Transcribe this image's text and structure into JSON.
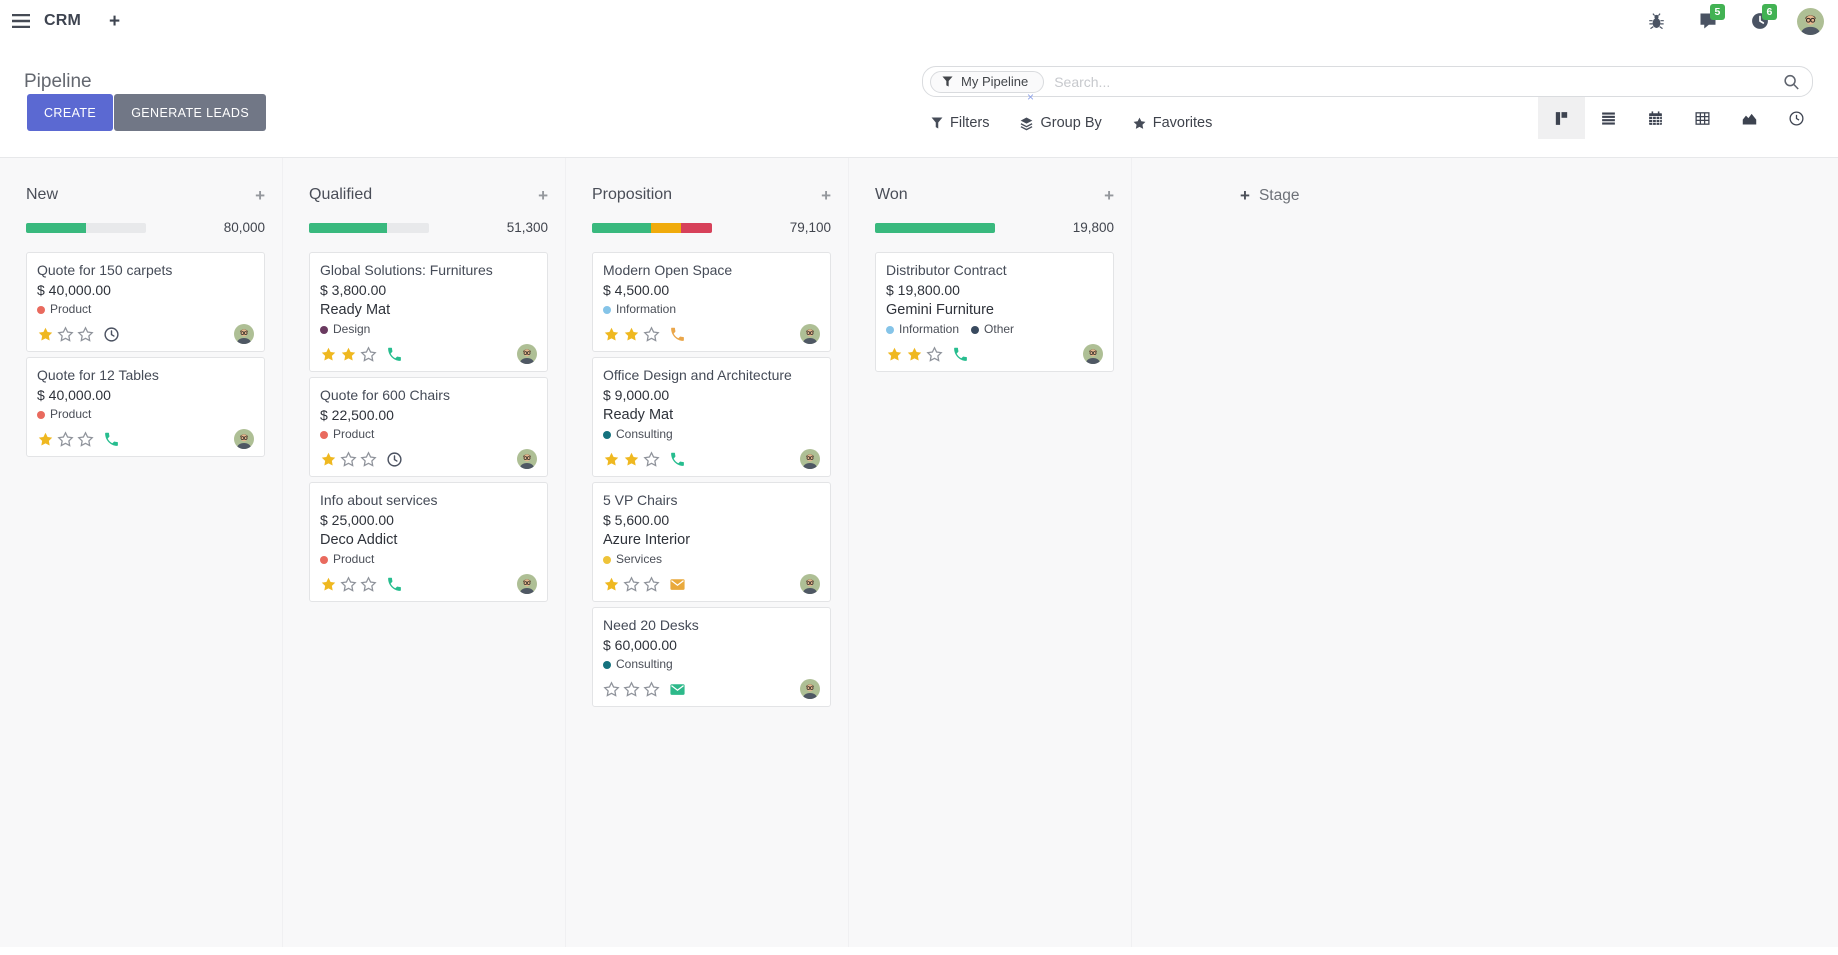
{
  "navbar": {
    "brand": "CRM",
    "add_label": "+",
    "badges": {
      "messages": "5",
      "activities": "6"
    },
    "icons": [
      "menu-icon",
      "plus-icon",
      "bug-icon",
      "messages-icon",
      "activities-clock-icon",
      "avatar"
    ]
  },
  "control_panel": {
    "title": "Pipeline",
    "create_label": "CREATE",
    "generate_leads_label": "GENERATE LEADS",
    "search": {
      "facet_label": "My Pipeline",
      "facet_remove": "×",
      "placeholder": "Search...",
      "icons": [
        "funnel-icon",
        "search-icon"
      ]
    },
    "filters_label": "Filters",
    "group_by_label": "Group By",
    "favorites_label": "Favorites",
    "view_switcher": [
      "kanban",
      "list",
      "calendar",
      "pivot",
      "graph",
      "activity"
    ],
    "active_view": "kanban"
  },
  "colors": {
    "create_button": "#5b69d2",
    "generate_button": "#717786",
    "badge_green": "#42b253",
    "progress_green": "#39b97e",
    "progress_yellow": "#f0ab0c",
    "progress_red": "#d7415a",
    "star_filled": "#efb820"
  },
  "kanban": {
    "add_card_label": "+",
    "add_stage_plus": "+",
    "add_stage_label": "Stage",
    "columns": [
      {
        "name": "New",
        "total": "80,000",
        "progress": [
          {
            "color": "#39b97e",
            "pct": 50
          }
        ],
        "cards": [
          {
            "title": "Quote for 150 carpets",
            "amount": "$ 40,000.00",
            "tags": [
              {
                "label": "Product",
                "color": "#e96a5e"
              }
            ],
            "stars": 1,
            "activity": {
              "icon": "clock-icon",
              "color": "#4a5160"
            }
          },
          {
            "title": "Quote for 12 Tables",
            "amount": "$ 40,000.00",
            "tags": [
              {
                "label": "Product",
                "color": "#e96a5e"
              }
            ],
            "stars": 1,
            "activity": {
              "icon": "phone-icon",
              "color": "#27bd8f"
            }
          }
        ]
      },
      {
        "name": "Qualified",
        "total": "51,300",
        "progress": [
          {
            "color": "#39b97e",
            "pct": 65
          }
        ],
        "cards": [
          {
            "title": "Global Solutions: Furnitures",
            "amount": "$ 3,800.00",
            "partner": "Ready Mat",
            "tags": [
              {
                "label": "Design",
                "color": "#6a3a60"
              }
            ],
            "stars": 2,
            "activity": {
              "icon": "phone-icon",
              "color": "#27bd8f"
            }
          },
          {
            "title": "Quote for 600 Chairs",
            "amount": "$ 22,500.00",
            "tags": [
              {
                "label": "Product",
                "color": "#e96a5e"
              }
            ],
            "stars": 1,
            "activity": {
              "icon": "clock-icon",
              "color": "#4a5160"
            }
          },
          {
            "title": "Info about services",
            "amount": "$ 25,000.00",
            "partner": "Deco Addict",
            "tags": [
              {
                "label": "Product",
                "color": "#e96a5e"
              }
            ],
            "stars": 1,
            "activity": {
              "icon": "phone-icon",
              "color": "#27bd8f"
            }
          }
        ]
      },
      {
        "name": "Proposition",
        "total": "79,100",
        "progress": [
          {
            "color": "#39b97e",
            "pct": 49
          },
          {
            "color": "#f0ab0c",
            "pct": 25
          },
          {
            "color": "#d7415a",
            "pct": 26
          }
        ],
        "cards": [
          {
            "title": "Modern Open Space",
            "amount": "$ 4,500.00",
            "tags": [
              {
                "label": "Information",
                "color": "#85c4e8"
              }
            ],
            "stars": 2,
            "activity": {
              "icon": "phone-icon",
              "color": "#eaa64a"
            }
          },
          {
            "title": "Office Design and Architecture",
            "amount": "$ 9,000.00",
            "partner": "Ready Mat",
            "tags": [
              {
                "label": "Consulting",
                "color": "#15727e"
              }
            ],
            "stars": 2,
            "activity": {
              "icon": "phone-icon",
              "color": "#27bd8f"
            }
          },
          {
            "title": "5 VP Chairs",
            "amount": "$ 5,600.00",
            "partner": "Azure Interior",
            "tags": [
              {
                "label": "Services",
                "color": "#eec339"
              }
            ],
            "stars": 1,
            "activity": {
              "icon": "envelope-icon",
              "color": "#e9a93c"
            }
          },
          {
            "title": "Need 20 Desks",
            "amount": "$ 60,000.00",
            "tags": [
              {
                "label": "Consulting",
                "color": "#15727e"
              }
            ],
            "stars": 0,
            "activity": {
              "icon": "envelope-icon",
              "color": "#2db98a"
            }
          }
        ]
      },
      {
        "name": "Won",
        "total": "19,800",
        "progress": [
          {
            "color": "#39b97e",
            "pct": 100
          }
        ],
        "cards": [
          {
            "title": "Distributor Contract",
            "amount": "$ 19,800.00",
            "partner": "Gemini Furniture",
            "tags": [
              {
                "label": "Information",
                "color": "#85c4e8"
              },
              {
                "label": "Other",
                "color": "#394a5f"
              }
            ],
            "stars": 2,
            "activity": {
              "icon": "phone-icon",
              "color": "#27bd8f"
            }
          }
        ]
      }
    ]
  }
}
